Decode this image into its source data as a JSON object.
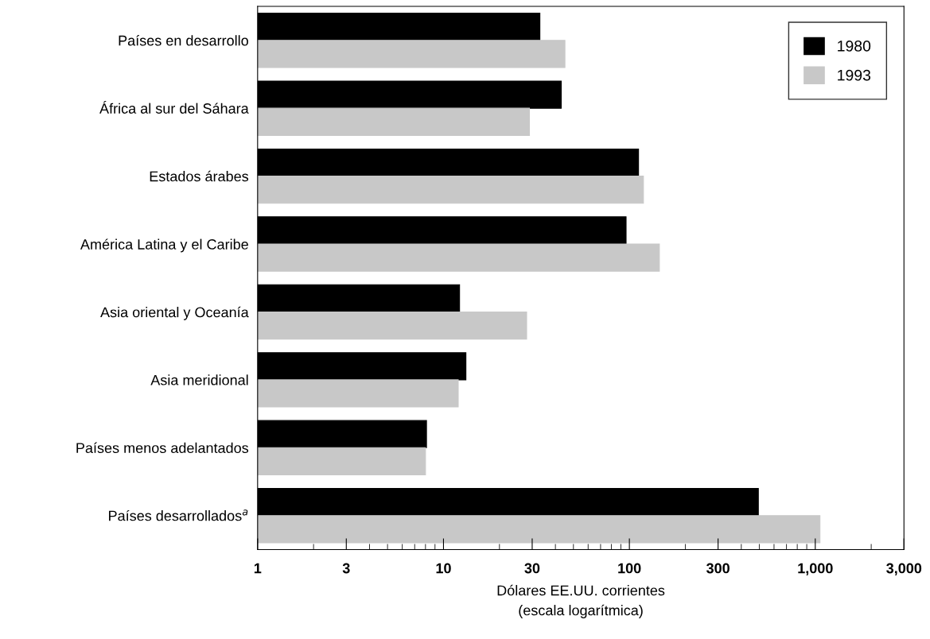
{
  "chart_data": {
    "type": "bar",
    "orientation": "horizontal",
    "log": "x",
    "categories": [
      "Países en desarrollo",
      "África al sur del Sáhara",
      "Estados árabes",
      "América Latina y el Caribe",
      "Asia oriental y Oceanía",
      "Asia meridional",
      "Países menos adelantados",
      "Países desarrollados$^{a}$"
    ],
    "series": [
      {
        "name": "1980",
        "color": "#000000",
        "values": [
          33,
          43,
          112,
          96,
          12.2,
          13.2,
          8.1,
          494
        ]
      },
      {
        "name": "1993",
        "color": "#c8c8c8",
        "values": [
          45,
          29,
          119,
          145,
          28,
          12,
          8.0,
          1060
        ]
      }
    ],
    "xlabel": "Dólares EE.UU. corrientes\n(escala logarítmica)",
    "xlim": [
      1,
      3000
    ],
    "xticks": [
      1,
      3,
      10,
      30,
      100,
      300,
      {
        "value": 1000,
        "label": "1,000"
      },
      {
        "value": 3000,
        "label": "3,000"
      }
    ],
    "tick_labels": "xy",
    "legend": "top right",
    "grid": false
  }
}
